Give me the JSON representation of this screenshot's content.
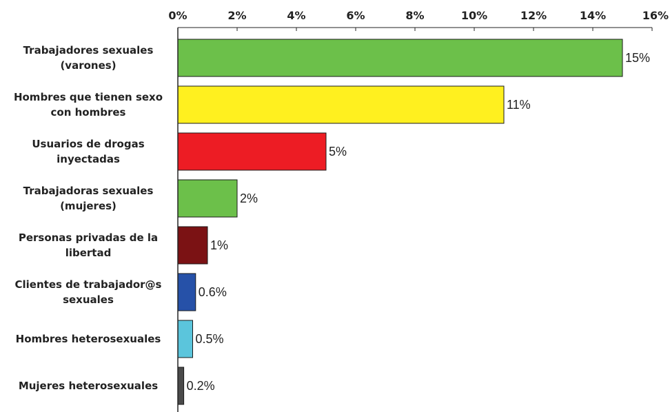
{
  "chart_data": {
    "type": "bar",
    "orientation": "horizontal",
    "x_axis_position": "top",
    "xlim": [
      0,
      16
    ],
    "x_ticks": [
      0,
      2,
      4,
      6,
      8,
      10,
      12,
      14,
      16
    ],
    "x_tick_labels": [
      "0%",
      "2%",
      "4%",
      "6%",
      "8%",
      "10%",
      "12%",
      "14%",
      "16%"
    ],
    "grid": false,
    "categories": [
      [
        "Trabajadores sexuales",
        "(varones)"
      ],
      [
        "Hombres que tienen sexo",
        "con hombres"
      ],
      [
        "Usuarios de drogas",
        "inyectadas"
      ],
      [
        "Trabajadoras sexuales",
        "(mujeres)"
      ],
      [
        "Personas privadas de la",
        "libertad"
      ],
      [
        "Clientes de trabajador@s",
        "sexuales"
      ],
      [
        "Hombres heterosexuales"
      ],
      [
        "Mujeres heterosexuales"
      ]
    ],
    "values": [
      15,
      11,
      5,
      2,
      1,
      0.6,
      0.5,
      0.2
    ],
    "value_labels": [
      "15%",
      "11%",
      "5%",
      "2%",
      "1%",
      "0.6%",
      "0.5%",
      "0.2%"
    ],
    "colors": [
      "#6cc04a",
      "#fff01f",
      "#ed1c24",
      "#6cc04a",
      "#7b1214",
      "#2651a8",
      "#5bc5dc",
      "#4a4a4a"
    ]
  }
}
